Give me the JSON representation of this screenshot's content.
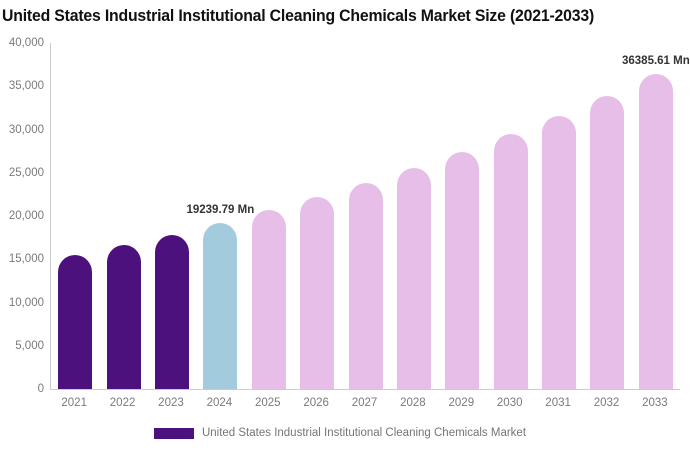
{
  "title": "United States Industrial Institutional Cleaning Chemicals Market Size (2021-2033)",
  "legend": {
    "label": "United States Industrial Institutional Cleaning Chemicals Market",
    "swatch_color": "#4D117D"
  },
  "chart_data": {
    "type": "bar",
    "title": "United States Industrial Institutional Cleaning Chemicals Market Size (2021-2033)",
    "xlabel": "",
    "ylabel": "",
    "categories": [
      "2021",
      "2022",
      "2023",
      "2024",
      "2025",
      "2026",
      "2027",
      "2028",
      "2029",
      "2030",
      "2031",
      "2032",
      "2033"
    ],
    "values": [
      15500,
      16650,
      17850,
      19239.79,
      20650,
      22170,
      23800,
      25540,
      27420,
      29430,
      31590,
      33910,
      36385.61
    ],
    "color_roles": [
      "past",
      "past",
      "past",
      "current",
      "forecast",
      "forecast",
      "forecast",
      "forecast",
      "forecast",
      "forecast",
      "forecast",
      "forecast",
      "forecast"
    ],
    "palette": {
      "past": "#4D117D",
      "current": "#A3CBDE",
      "forecast": "#E6BEE8"
    },
    "ylim": [
      0,
      40000
    ],
    "ytick_step": 5000,
    "ytick_labels": [
      "0",
      "5,000",
      "10,000",
      "15,000",
      "20,000",
      "25,000",
      "30,000",
      "35,000",
      "40,000"
    ],
    "annotations": [
      {
        "category": "2024",
        "text": "19239.79 Mn"
      },
      {
        "category": "2033",
        "text": "36385.61 Mn"
      }
    ],
    "grid": false,
    "legend_position": "bottom",
    "legend_entries": [
      "United States Industrial Institutional Cleaning Chemicals Market"
    ]
  }
}
